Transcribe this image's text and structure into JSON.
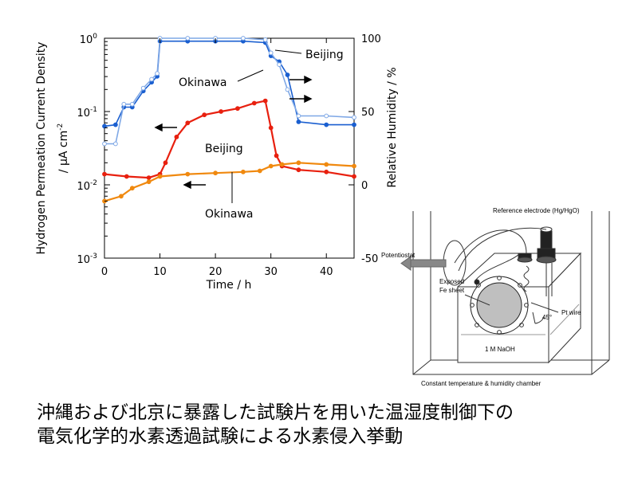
{
  "caption": {
    "line1": "沖縄および北京に暴露した試験片を用いた温湿度制御下の",
    "line2": "電気化学的水素透過試験による水素侵入挙動"
  },
  "chart_data": {
    "type": "line",
    "xlabel": "Time / h",
    "ylabel_left_line1": "Hydrogen Permeation Current Density",
    "ylabel_left_line2": "/ μA cm",
    "ylabel_left_sup": "-2",
    "ylabel_right": "Relative Humidity / %",
    "xlim": [
      0,
      45
    ],
    "ylim_left": [
      0.001,
      1
    ],
    "ylim_right": [
      -50,
      100
    ],
    "left_scale": "log",
    "x_ticks": [
      "0",
      "10",
      "20",
      "30",
      "40"
    ],
    "y_left_ticks": [
      {
        "base": "10",
        "exp": "0",
        "value": 1
      },
      {
        "base": "10",
        "exp": "-1",
        "value": 0.1
      },
      {
        "base": "10",
        "exp": "-2",
        "value": 0.01
      },
      {
        "base": "10",
        "exp": "-3",
        "value": 0.001
      }
    ],
    "y_right_ticks": [
      "100",
      "50",
      "0",
      "-50"
    ],
    "series": [
      {
        "name": "Beijing",
        "axis": "left",
        "color": "#e8200f",
        "x": [
          0,
          4,
          8,
          10,
          11,
          13,
          15,
          18,
          21,
          24,
          27,
          29,
          30,
          31,
          32,
          35,
          40,
          45
        ],
        "y": [
          0.014,
          0.013,
          0.0125,
          0.014,
          0.02,
          0.045,
          0.07,
          0.09,
          0.1,
          0.11,
          0.13,
          0.14,
          0.06,
          0.025,
          0.018,
          0.016,
          0.015,
          0.013
        ]
      },
      {
        "name": "Okinawa",
        "axis": "left",
        "color": "#f0890f",
        "x": [
          0,
          3,
          5,
          8,
          10,
          15,
          20,
          25,
          28,
          30,
          32,
          35,
          40,
          45
        ],
        "y": [
          0.006,
          0.007,
          0.009,
          0.011,
          0.013,
          0.014,
          0.0145,
          0.015,
          0.0155,
          0.018,
          0.019,
          0.02,
          0.019,
          0.018
        ]
      },
      {
        "name": "Beijing",
        "axis": "right",
        "color": "#1a5fd0",
        "x": [
          0,
          2,
          3.5,
          5,
          7,
          8.5,
          9.5,
          10,
          15,
          20,
          25,
          29,
          30,
          31.5,
          33,
          35,
          40,
          45
        ],
        "y": [
          40,
          41,
          53,
          53,
          64,
          70,
          74,
          98,
          98,
          98,
          98,
          97,
          88,
          84,
          75,
          43,
          41,
          41
        ]
      },
      {
        "name": "Okinawa",
        "axis": "right",
        "color": "#7fa8e6",
        "x": [
          0,
          2,
          3.5,
          5,
          7,
          8.5,
          9.5,
          10,
          15,
          20,
          25,
          29,
          30,
          31.5,
          33,
          35,
          40,
          45
        ],
        "y": [
          28,
          28,
          55,
          55,
          66,
          72,
          76,
          100,
          100,
          100,
          100,
          99,
          90,
          82,
          65,
          47,
          47,
          46
        ]
      }
    ],
    "annotations": [
      {
        "text": "Beijing",
        "target": "right-axis series"
      },
      {
        "text": "Okinawa",
        "target": "right-axis series"
      },
      {
        "text": "Beijing",
        "target": "left-axis series"
      },
      {
        "text": "Okinawa",
        "target": "left-axis series"
      }
    ],
    "colors": {
      "beijing_current": "#e8200f",
      "okinawa_current": "#f0890f",
      "beijing_rh": "#1a5fd0",
      "okinawa_rh": "#7fa8e6"
    }
  },
  "diagram": {
    "reference_electrode": "Reference electrode (Hg/HgO)",
    "potentiostat": "Potentiostat",
    "exposed_line1": "Exposed",
    "exposed_line2": "Fe sheet",
    "pt_wire": "Pt wire",
    "angle": "45°",
    "solution": "1 M NaOH",
    "chamber": "Constant temperature & humidity chamber"
  }
}
